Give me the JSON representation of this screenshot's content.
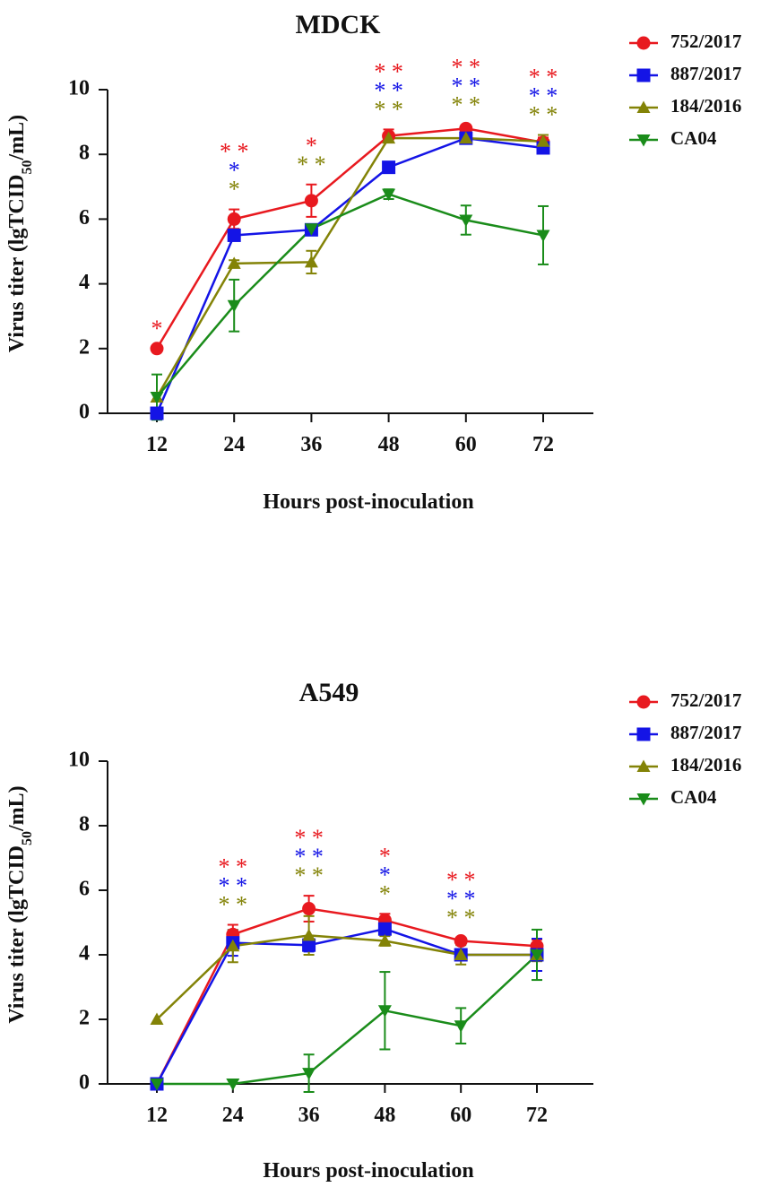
{
  "chart_data": [
    {
      "type": "line",
      "title": "MDCK",
      "xlabel": "Hours post-inoculation",
      "ylabel_parts": [
        "Virus titer (lgTCID",
        "50",
        "/mL)"
      ],
      "x": [
        12,
        24,
        36,
        48,
        60,
        72
      ],
      "x_tick_labels": [
        "12",
        "24",
        "36",
        "48",
        "60",
        "72"
      ],
      "ylim": [
        0,
        10
      ],
      "y_ticks": [
        0,
        2,
        4,
        6,
        8,
        10
      ],
      "legend_position": "top-right",
      "series": [
        {
          "name": "752/2017",
          "color": "#e8191f",
          "marker": "circle",
          "values": [
            2.0,
            6.0,
            6.57,
            8.57,
            8.8,
            8.37
          ],
          "errors": [
            0,
            0.3,
            0.5,
            0.2,
            0.1,
            0.15
          ]
        },
        {
          "name": "887/2017",
          "color": "#1414e6",
          "marker": "square",
          "values": [
            0.0,
            5.5,
            5.67,
            7.6,
            8.5,
            8.2
          ],
          "errors": [
            0,
            0.15,
            0.1,
            0.1,
            0.1,
            0.1
          ]
        },
        {
          "name": "184/2016",
          "color": "#838307",
          "marker": "triangle-up",
          "values": [
            0.5,
            4.63,
            4.67,
            8.5,
            8.5,
            8.4
          ],
          "errors": [
            0,
            0.1,
            0.35,
            0.1,
            0.1,
            0.2
          ]
        },
        {
          "name": "CA04",
          "color": "#1a8c1a",
          "marker": "triangle-down",
          "values": [
            0.5,
            3.33,
            5.7,
            6.77,
            5.97,
            5.5
          ],
          "errors": [
            0.7,
            0.8,
            0.1,
            0.15,
            0.45,
            0.9
          ]
        }
      ],
      "significance": [
        {
          "x": 12,
          "rows": [
            {
              "color": "#e8191f",
              "text": "*"
            }
          ]
        },
        {
          "x": 24,
          "rows": [
            {
              "color": "#e8191f",
              "text": "* *"
            },
            {
              "color": "#1414e6",
              "text": "*"
            },
            {
              "color": "#838307",
              "text": "*"
            }
          ]
        },
        {
          "x": 36,
          "rows": [
            {
              "color": "#e8191f",
              "text": "*"
            },
            {
              "color": "#838307",
              "text": "* *"
            }
          ]
        },
        {
          "x": 48,
          "rows": [
            {
              "color": "#e8191f",
              "text": "* *"
            },
            {
              "color": "#1414e6",
              "text": "* *"
            },
            {
              "color": "#838307",
              "text": "* *"
            }
          ]
        },
        {
          "x": 60,
          "rows": [
            {
              "color": "#e8191f",
              "text": "* *"
            },
            {
              "color": "#1414e6",
              "text": "* *"
            },
            {
              "color": "#838307",
              "text": "* *"
            }
          ]
        },
        {
          "x": 72,
          "rows": [
            {
              "color": "#e8191f",
              "text": "* *"
            },
            {
              "color": "#1414e6",
              "text": "* *"
            },
            {
              "color": "#838307",
              "text": "* *"
            }
          ]
        }
      ]
    },
    {
      "type": "line",
      "title": "A549",
      "xlabel": "Hours post-inoculation",
      "ylabel_parts": [
        "Virus titer (lgTCID",
        "50",
        "/mL)"
      ],
      "x": [
        12,
        24,
        36,
        48,
        60,
        72
      ],
      "x_tick_labels": [
        "12",
        "24",
        "36",
        "48",
        "60",
        "72"
      ],
      "ylim": [
        0,
        10
      ],
      "y_ticks": [
        0,
        2,
        4,
        6,
        8,
        10
      ],
      "legend_position": "top-right",
      "series": [
        {
          "name": "752/2017",
          "color": "#e8191f",
          "marker": "circle",
          "values": [
            0.0,
            4.63,
            5.43,
            5.07,
            4.43,
            4.27
          ],
          "errors": [
            0,
            0.3,
            0.4,
            0.2,
            0.1,
            0.2
          ]
        },
        {
          "name": "887/2017",
          "color": "#1414e6",
          "marker": "square",
          "values": [
            0.0,
            4.37,
            4.3,
            4.8,
            4.0,
            4.0
          ],
          "errors": [
            0,
            0.4,
            0.2,
            0.2,
            0.1,
            0.5
          ]
        },
        {
          "name": "184/2016",
          "color": "#838307",
          "marker": "triangle-up",
          "values": [
            2.0,
            4.27,
            4.6,
            4.43,
            4.0,
            4.0
          ],
          "errors": [
            0,
            0.5,
            0.6,
            0.15,
            0.3,
            0.2
          ]
        },
        {
          "name": "CA04",
          "color": "#1a8c1a",
          "marker": "triangle-down",
          "values": [
            0.0,
            0.0,
            0.33,
            2.27,
            1.8,
            4.0
          ],
          "errors": [
            0,
            0,
            0.58,
            1.2,
            0.55,
            0.78
          ]
        }
      ],
      "significance": [
        {
          "x": 24,
          "rows": [
            {
              "color": "#e8191f",
              "text": "* *"
            },
            {
              "color": "#1414e6",
              "text": "* *"
            },
            {
              "color": "#838307",
              "text": "* *"
            }
          ]
        },
        {
          "x": 36,
          "rows": [
            {
              "color": "#e8191f",
              "text": "* *"
            },
            {
              "color": "#1414e6",
              "text": "* *"
            },
            {
              "color": "#838307",
              "text": "* *"
            }
          ]
        },
        {
          "x": 48,
          "rows": [
            {
              "color": "#e8191f",
              "text": "*"
            },
            {
              "color": "#1414e6",
              "text": "*"
            },
            {
              "color": "#838307",
              "text": "*"
            }
          ]
        },
        {
          "x": 60,
          "rows": [
            {
              "color": "#e8191f",
              "text": "* *"
            },
            {
              "color": "#1414e6",
              "text": "* *"
            },
            {
              "color": "#838307",
              "text": "* *"
            }
          ]
        }
      ]
    }
  ]
}
